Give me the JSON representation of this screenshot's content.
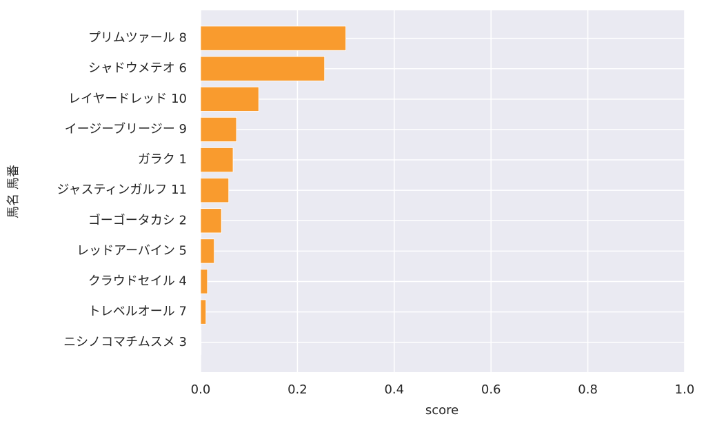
{
  "chart_data": {
    "type": "barh",
    "categories": [
      "プリムツァール 8",
      "シャドウメテオ 6",
      "レイヤードレッド 10",
      "イージーブリージー 9",
      "ガラク 1",
      "ジャスティンガルフ 11",
      "ゴーゴータカシ 2",
      "レッドアーバイン 5",
      "クラウドセイル 4",
      "トレベルオール 7",
      "ニシノコマチムスメ 3"
    ],
    "values": [
      0.3,
      0.256,
      0.12,
      0.074,
      0.067,
      0.058,
      0.043,
      0.028,
      0.014,
      0.011,
      0.001
    ],
    "color": "#f99b2e",
    "xlabel": "score",
    "ylabel": "馬名 馬番",
    "xlim": [
      0,
      1.0
    ],
    "xticks": [
      {
        "value": 0,
        "label": "0.0"
      },
      {
        "value": 0.2,
        "label": "0.2"
      },
      {
        "value": 0.4,
        "label": "0.4"
      },
      {
        "value": 0.6,
        "label": "0.6"
      },
      {
        "value": 0.8,
        "label": "0.8"
      },
      {
        "value": 1.0,
        "label": "1.0"
      }
    ],
    "grid": true
  }
}
